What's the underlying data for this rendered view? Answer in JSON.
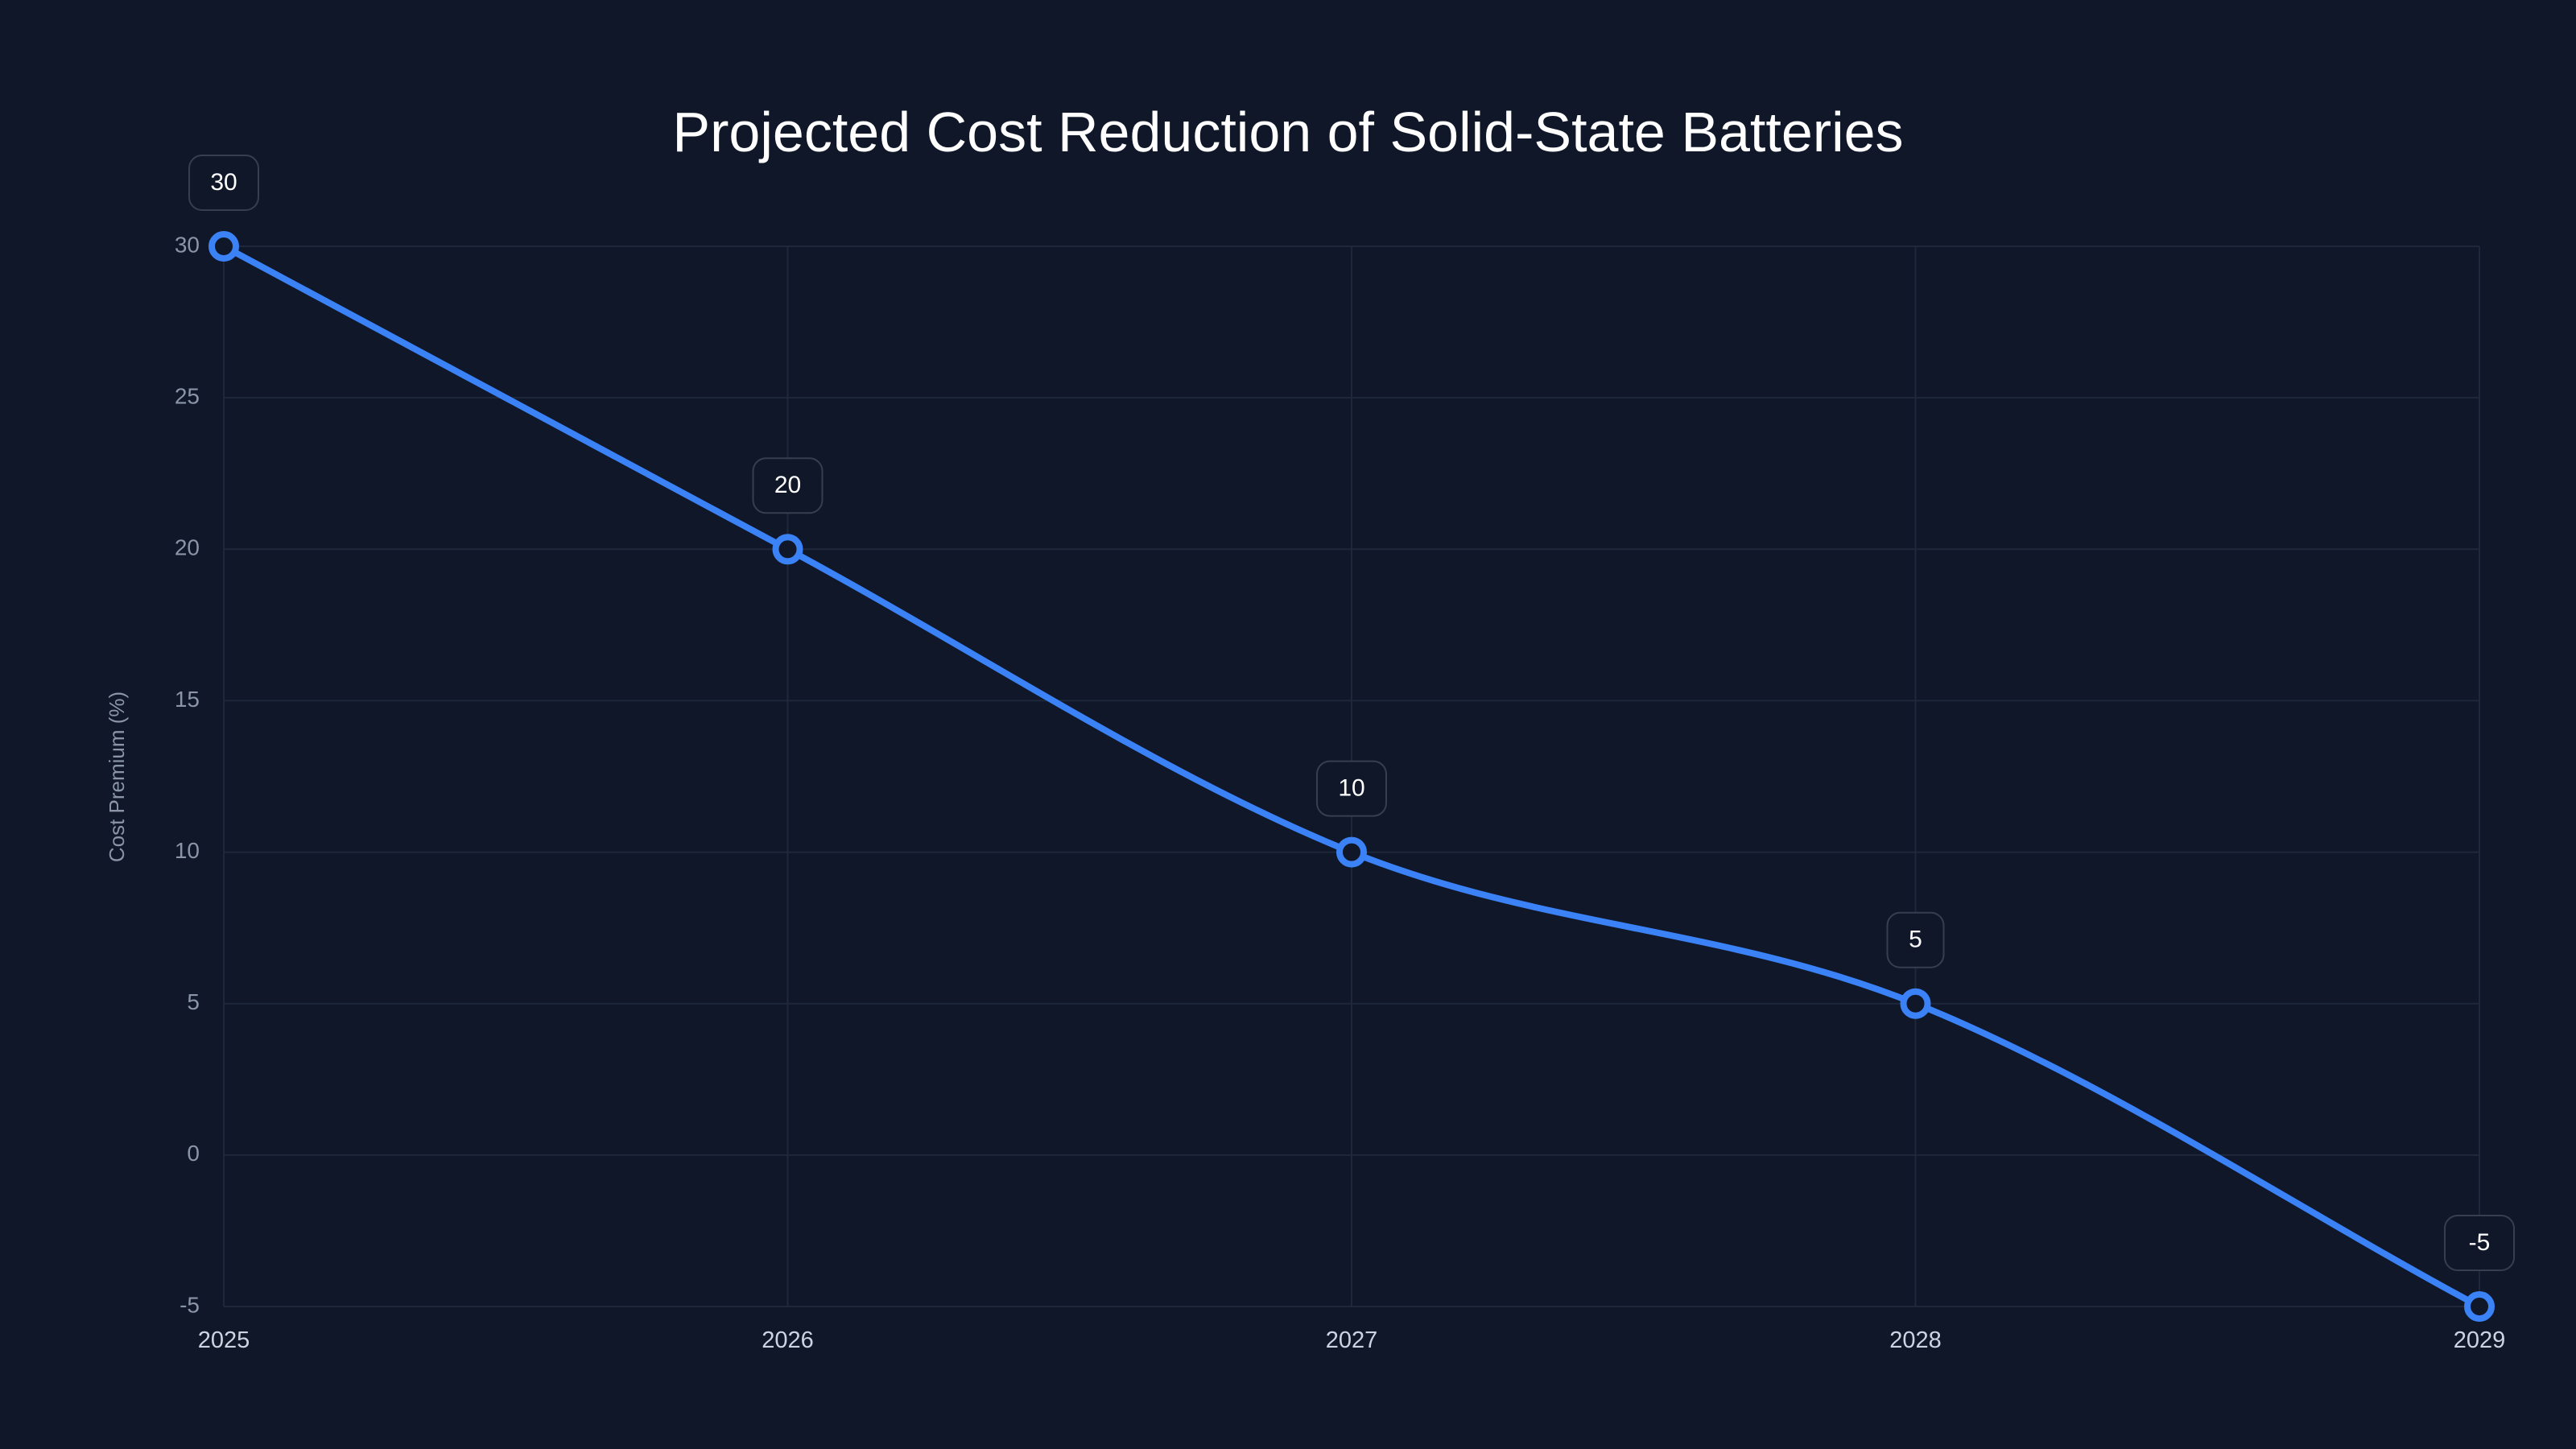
{
  "chart_data": {
    "type": "line",
    "title": "Projected Cost Reduction of Solid-State Batteries",
    "xlabel": "",
    "ylabel": "Cost Premium (%)",
    "categories": [
      "2025",
      "2026",
      "2027",
      "2028",
      "2029"
    ],
    "series": [
      {
        "name": "Cost Premium (%)",
        "values": [
          30,
          20,
          10,
          5,
          -5
        ],
        "color": "#3b82f6"
      }
    ],
    "data_labels": [
      "30",
      "20",
      "10",
      "5",
      "-5"
    ],
    "ylim": [
      -5,
      30
    ],
    "yticks": [
      -5,
      0,
      5,
      10,
      15,
      20,
      25,
      30
    ],
    "ytick_labels": [
      "-5",
      "0",
      "5",
      "10",
      "15",
      "20",
      "25",
      "30"
    ],
    "grid": true,
    "legend": "none"
  }
}
